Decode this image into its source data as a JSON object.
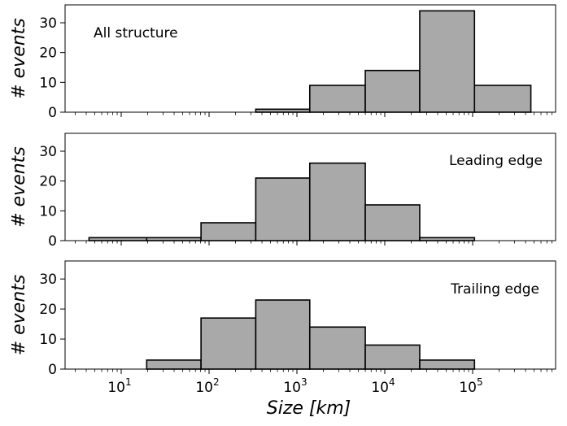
{
  "chart_data": [
    {
      "type": "bar",
      "annotation": "All structure",
      "ylabel": "# events",
      "xlabel": "",
      "xscale": "log",
      "yticks": [
        0,
        10,
        20,
        30
      ],
      "ylim": [
        0,
        36
      ],
      "bin_edges": [
        4.3,
        19.5,
        81,
        340,
        1400,
        6000,
        25000,
        105000,
        460000
      ],
      "values": [
        0,
        0,
        0,
        1,
        9,
        14,
        34,
        9
      ]
    },
    {
      "type": "bar",
      "annotation": "Leading edge",
      "ylabel": "# events",
      "xlabel": "",
      "xscale": "log",
      "yticks": [
        0,
        10,
        20,
        30
      ],
      "ylim": [
        0,
        36
      ],
      "bin_edges": [
        4.3,
        19.5,
        81,
        340,
        1400,
        6000,
        25000,
        105000,
        460000
      ],
      "values": [
        1,
        1,
        6,
        21,
        26,
        12,
        1,
        0
      ]
    },
    {
      "type": "bar",
      "annotation": "Trailing edge",
      "ylabel": "# events",
      "xlabel": "Size [km]",
      "xscale": "log",
      "yticks": [
        0,
        10,
        20,
        30
      ],
      "ylim": [
        0,
        36
      ],
      "xtick_labels": [
        "10",
        "10",
        "10",
        "10",
        "10"
      ],
      "xtick_exponents": [
        "1",
        "2",
        "3",
        "4",
        "5"
      ],
      "bin_edges": [
        4.3,
        19.5,
        81,
        340,
        1400,
        6000,
        25000,
        105000,
        460000
      ],
      "values": [
        0,
        3,
        17,
        23,
        14,
        8,
        3,
        0
      ]
    }
  ],
  "style": {
    "bar_fill": "#a9a9a9",
    "bar_stroke": "#000000",
    "axis_color": "#000000"
  }
}
